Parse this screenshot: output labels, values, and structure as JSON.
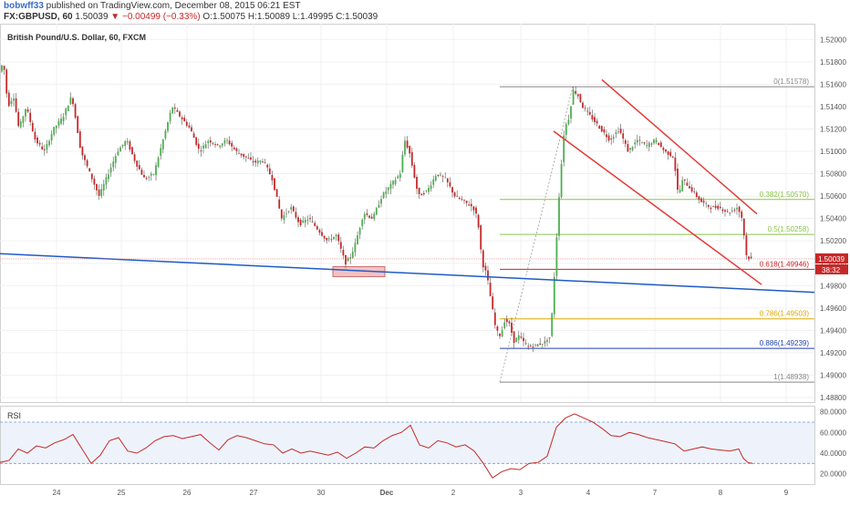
{
  "header": {
    "user": "bobwff33",
    "published": " published on TradingView.com, December 08, 2015 06:21 EST",
    "symbol": "FX:GBPUSD, 60",
    "last": "1.50039",
    "arrow": "▼",
    "change": "−0.00499 (−0.33%)",
    "ohlc": "O:1.50075 H:1.50089 L:1.49995 C:1.50039"
  },
  "chart_data": [
    {
      "type": "candlestick",
      "title": "British Pound/U.S. Dollar, 60, FXCM",
      "ylim": [
        1.488,
        1.521
      ],
      "y_ticks": [
        "1.52000",
        "1.51800",
        "1.51600",
        "1.51400",
        "1.51200",
        "1.51000",
        "1.50800",
        "1.50600",
        "1.50400",
        "1.50200",
        "1.50000",
        "1.49800",
        "1.49600",
        "1.49400",
        "1.49200",
        "1.49000",
        "1.48800"
      ],
      "x_ticks": [
        "24",
        "25",
        "26",
        "27",
        "30",
        "Dec",
        "2",
        "3",
        "4",
        "7",
        "8",
        "9"
      ],
      "last_price_label": "1.50039",
      "countdown_label": "38:32",
      "colors": {
        "up": "#4caf50",
        "down": "#c62828",
        "fib_line": "#888888",
        "trend_blue": "#1e5bc6",
        "channel": "#e53935"
      },
      "price_path": [
        [
          0,
          1.517
        ],
        [
          5,
          1.518
        ],
        [
          10,
          1.514
        ],
        [
          16,
          1.515
        ],
        [
          22,
          1.512
        ],
        [
          30,
          1.514
        ],
        [
          40,
          1.511
        ],
        [
          50,
          1.51
        ],
        [
          60,
          1.512
        ],
        [
          70,
          1.513
        ],
        [
          80,
          1.515
        ],
        [
          90,
          1.51
        ],
        [
          100,
          1.508
        ],
        [
          110,
          1.506
        ],
        [
          120,
          1.508
        ],
        [
          130,
          1.51
        ],
        [
          140,
          1.511
        ],
        [
          150,
          1.509
        ],
        [
          160,
          1.5075
        ],
        [
          170,
          1.508
        ],
        [
          180,
          1.511
        ],
        [
          190,
          1.514
        ],
        [
          200,
          1.513
        ],
        [
          210,
          1.512
        ],
        [
          220,
          1.51
        ],
        [
          230,
          1.511
        ],
        [
          240,
          1.5105
        ],
        [
          250,
          1.511
        ],
        [
          260,
          1.51
        ],
        [
          270,
          1.5095
        ],
        [
          280,
          1.509
        ],
        [
          290,
          1.5092
        ],
        [
          300,
          1.5075
        ],
        [
          310,
          1.504
        ],
        [
          320,
          1.505
        ],
        [
          330,
          1.5035
        ],
        [
          340,
          1.504
        ],
        [
          350,
          1.503
        ],
        [
          360,
          1.502
        ],
        [
          370,
          1.5025
        ],
        [
          380,
          1.5
        ],
        [
          385,
          1.5005
        ],
        [
          390,
          1.5015
        ],
        [
          400,
          1.5045
        ],
        [
          410,
          1.504
        ],
        [
          420,
          1.506
        ],
        [
          430,
          1.507
        ],
        [
          440,
          1.508
        ],
        [
          445,
          1.511
        ],
        [
          450,
          1.51
        ],
        [
          460,
          1.506
        ],
        [
          470,
          1.5065
        ],
        [
          480,
          1.508
        ],
        [
          490,
          1.5075
        ],
        [
          500,
          1.506
        ],
        [
          510,
          1.5055
        ],
        [
          520,
          1.505
        ],
        [
          525,
          1.504
        ],
        [
          530,
          1.5
        ],
        [
          535,
          1.499
        ],
        [
          540,
          1.4965
        ],
        [
          545,
          1.494
        ],
        [
          550,
          1.4935
        ],
        [
          555,
          1.495
        ],
        [
          560,
          1.4945
        ],
        [
          565,
          1.493
        ],
        [
          570,
          1.4935
        ],
        [
          580,
          1.4925
        ],
        [
          590,
          1.4927
        ],
        [
          600,
          1.493
        ],
        [
          605,
          1.4935
        ],
        [
          610,
          1.5
        ],
        [
          615,
          1.507
        ],
        [
          620,
          1.512
        ],
        [
          625,
          1.513
        ],
        [
          630,
          1.5155
        ],
        [
          635,
          1.515
        ],
        [
          640,
          1.514
        ],
        [
          650,
          1.513
        ],
        [
          660,
          1.512
        ],
        [
          670,
          1.511
        ],
        [
          680,
          1.512
        ],
        [
          690,
          1.51
        ],
        [
          700,
          1.511
        ],
        [
          710,
          1.5105
        ],
        [
          720,
          1.511
        ],
        [
          730,
          1.51
        ],
        [
          740,
          1.5095
        ],
        [
          745,
          1.506
        ],
        [
          750,
          1.5075
        ],
        [
          760,
          1.5065
        ],
        [
          770,
          1.5055
        ],
        [
          780,
          1.505
        ],
        [
          790,
          1.505
        ],
        [
          800,
          1.5045
        ],
        [
          810,
          1.505
        ],
        [
          815,
          1.504
        ],
        [
          820,
          1.5005
        ],
        [
          825,
          1.5004
        ]
      ],
      "fibonacci": [
        {
          "label": "0(1.51578)",
          "value": 1.51578,
          "color": "#888888"
        },
        {
          "label": "0.382(1.50570)",
          "value": 1.5057,
          "color": "#8bc34a"
        },
        {
          "label": "0.5(1.50258)",
          "value": 1.50258,
          "color": "#8bc34a"
        },
        {
          "label": "0.618(1.49946)",
          "value": 1.49946,
          "color": "#c62828"
        },
        {
          "label": "0.786(1.49503)",
          "value": 1.49503,
          "color": "#e0a800"
        },
        {
          "label": "0.886(1.49239)",
          "value": 1.49239,
          "color": "#1e3fae"
        },
        {
          "label": "1(1.48938)",
          "value": 1.48938,
          "color": "#888888"
        }
      ],
      "trendline_blue": {
        "from": [
          0,
          1.50085
        ],
        "to": [
          893,
          1.4974
        ]
      },
      "channel_upper": {
        "from": [
          660,
          1.5164
        ],
        "to": [
          830,
          1.5044
        ]
      },
      "channel_lower": {
        "from": [
          607,
          1.5118
        ],
        "to": [
          835,
          1.4981
        ]
      },
      "support_box": {
        "x": [
          365,
          422
        ],
        "y": [
          1.4988,
          1.4997
        ]
      },
      "fib_connector": {
        "from": [
          548,
          1.48938
        ],
        "to": [
          628,
          1.51578
        ]
      }
    },
    {
      "type": "line",
      "title": "RSI",
      "ylim": [
        10,
        85
      ],
      "y_ticks": [
        "80.0000",
        "60.0000",
        "40.0000",
        "20.0000"
      ],
      "guides": [
        70,
        30
      ],
      "colors": {
        "line": "#c62828",
        "guide": "#6a9ae0",
        "band": "#eef3fb"
      },
      "rsi_path": [
        [
          0,
          31
        ],
        [
          10,
          33
        ],
        [
          20,
          44
        ],
        [
          30,
          40
        ],
        [
          40,
          47
        ],
        [
          50,
          45
        ],
        [
          60,
          50
        ],
        [
          70,
          53
        ],
        [
          80,
          58
        ],
        [
          90,
          44
        ],
        [
          100,
          30
        ],
        [
          110,
          38
        ],
        [
          120,
          52
        ],
        [
          130,
          55
        ],
        [
          140,
          42
        ],
        [
          150,
          40
        ],
        [
          160,
          45
        ],
        [
          170,
          52
        ],
        [
          180,
          56
        ],
        [
          190,
          57
        ],
        [
          200,
          54
        ],
        [
          210,
          56
        ],
        [
          220,
          58
        ],
        [
          230,
          50
        ],
        [
          240,
          43
        ],
        [
          250,
          53
        ],
        [
          260,
          57
        ],
        [
          270,
          55
        ],
        [
          280,
          52
        ],
        [
          290,
          49
        ],
        [
          300,
          48
        ],
        [
          310,
          40
        ],
        [
          320,
          44
        ],
        [
          330,
          40
        ],
        [
          340,
          42
        ],
        [
          350,
          40
        ],
        [
          360,
          38
        ],
        [
          370,
          41
        ],
        [
          380,
          35
        ],
        [
          390,
          40
        ],
        [
          400,
          46
        ],
        [
          410,
          45
        ],
        [
          420,
          52
        ],
        [
          430,
          57
        ],
        [
          440,
          60
        ],
        [
          450,
          67
        ],
        [
          460,
          48
        ],
        [
          470,
          45
        ],
        [
          480,
          52
        ],
        [
          490,
          50
        ],
        [
          500,
          46
        ],
        [
          510,
          48
        ],
        [
          520,
          42
        ],
        [
          530,
          30
        ],
        [
          540,
          16
        ],
        [
          550,
          22
        ],
        [
          560,
          25
        ],
        [
          570,
          24
        ],
        [
          580,
          30
        ],
        [
          590,
          31
        ],
        [
          600,
          37
        ],
        [
          610,
          65
        ],
        [
          620,
          74
        ],
        [
          630,
          78
        ],
        [
          640,
          74
        ],
        [
          650,
          70
        ],
        [
          660,
          64
        ],
        [
          670,
          57
        ],
        [
          680,
          56
        ],
        [
          690,
          60
        ],
        [
          700,
          58
        ],
        [
          710,
          55
        ],
        [
          720,
          53
        ],
        [
          730,
          51
        ],
        [
          740,
          49
        ],
        [
          750,
          42
        ],
        [
          760,
          44
        ],
        [
          770,
          46
        ],
        [
          780,
          44
        ],
        [
          790,
          43
        ],
        [
          800,
          42
        ],
        [
          810,
          44
        ],
        [
          815,
          35
        ],
        [
          820,
          31
        ],
        [
          825,
          30
        ]
      ]
    }
  ]
}
